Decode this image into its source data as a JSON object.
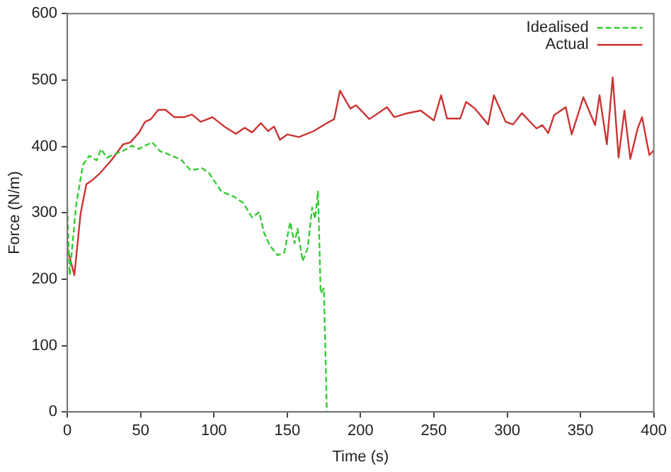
{
  "chart_data": {
    "type": "line",
    "xlabel": "Time (s)",
    "ylabel": "Force (N/m)",
    "xlim": [
      0,
      400
    ],
    "xticks": [
      0,
      50,
      100,
      150,
      200,
      250,
      300,
      350,
      400
    ],
    "ylim": [
      0,
      600
    ],
    "yticks": [
      0,
      100,
      200,
      300,
      400,
      500,
      600
    ],
    "grid": false,
    "legend": "top right",
    "marker": "none",
    "series": [
      {
        "name": "Idealised",
        "color": "#33cc33",
        "line_style": "dashed",
        "x": [
          0,
          1.6,
          6,
          10.6,
          15,
          20,
          23,
          27,
          33,
          38,
          44,
          49,
          52,
          58,
          63,
          71.5,
          78,
          84,
          92,
          97,
          105,
          113,
          120,
          126,
          131,
          134,
          138,
          143.5,
          148,
          152,
          155,
          157,
          160.5,
          164,
          167,
          169,
          171,
          172.8,
          175,
          177
        ],
        "values": [
          308,
          206,
          311,
          372,
          386,
          379,
          396,
          383,
          389,
          393,
          401,
          396,
          400,
          406,
          393,
          386,
          379,
          364,
          367,
          359,
          332,
          325,
          315,
          293,
          301,
          271,
          251,
          236,
          240,
          286,
          254,
          276,
          227,
          247,
          308,
          291,
          332,
          179,
          186,
          0
        ]
      },
      {
        "name": "Actual",
        "color": "#cc3333",
        "line_style": "solid",
        "x": [
          0,
          4.8,
          9,
          13,
          17,
          22,
          30,
          38,
          43,
          49,
          53,
          57,
          62,
          67,
          73,
          79.5,
          85,
          91,
          99,
          107,
          115,
          121,
          126,
          132,
          137,
          141,
          145,
          150,
          158,
          168,
          177,
          182,
          186,
          193,
          197,
          206,
          218,
          223,
          232,
          241,
          250,
          255,
          259,
          268,
          272,
          278,
          287,
          291,
          299,
          304,
          310,
          320,
          324,
          328,
          332,
          340,
          344,
          352,
          360,
          363,
          368,
          372,
          376,
          380,
          384,
          389,
          392,
          397,
          400
        ],
        "values": [
          247,
          206,
          298,
          343,
          349,
          359,
          379,
          403,
          406,
          421,
          437,
          441,
          455,
          455,
          444,
          444,
          448,
          437,
          444,
          430,
          419,
          428,
          421,
          435,
          423,
          430,
          410,
          418,
          414,
          423,
          435,
          441,
          484,
          457,
          462,
          441,
          459,
          444,
          450,
          454,
          439,
          477,
          442,
          442,
          467,
          457,
          433,
          477,
          437,
          433,
          450,
          427,
          432,
          420,
          447,
          459,
          418,
          474,
          432,
          477,
          403,
          504,
          383,
          454,
          381,
          427,
          444,
          387,
          394
        ]
      }
    ]
  }
}
